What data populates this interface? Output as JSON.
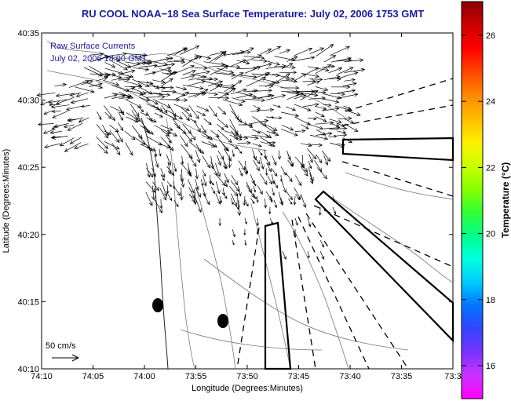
{
  "title": "RU COOL  NOAA−18  Sea Surface Temperature:  July 02, 2006 1753 GMT",
  "legend": {
    "line1": "Raw Surface Currents",
    "line2": "July 02, 2006 18:00 GMT"
  },
  "axes": {
    "xlabel": "Longitude (Degrees:Minutes)",
    "ylabel": "Latitude (Degrees:Minutes)",
    "xticks": [
      "74:10",
      "74:05",
      "74:00",
      "73:55",
      "73:50",
      "73:45",
      "73:40",
      "73:35",
      "73:3"
    ],
    "yticks": [
      "40:35",
      "40:30",
      "40:25",
      "40:20",
      "40:15",
      "40:10"
    ]
  },
  "scale": {
    "label": "50 cm/s"
  },
  "colorbar": {
    "label": "Temperature (°C)",
    "ticks": [
      "26",
      "24",
      "22",
      "20",
      "18",
      "16"
    ],
    "colors": [
      "#ff00ff",
      "#cc33ff",
      "#7733ff",
      "#3344ff",
      "#0077ff",
      "#00ccff",
      "#00ffdd",
      "#00ff88",
      "#33ff33",
      "#88ff00",
      "#ccff00",
      "#ffee00",
      "#ffbb00",
      "#ff8800",
      "#ff4400",
      "#ff0000",
      "#cc0000",
      "#880000"
    ]
  },
  "colors": {
    "title": "#1a1aa0",
    "map_bg": "#ffffff",
    "vectors": "#000000"
  }
}
